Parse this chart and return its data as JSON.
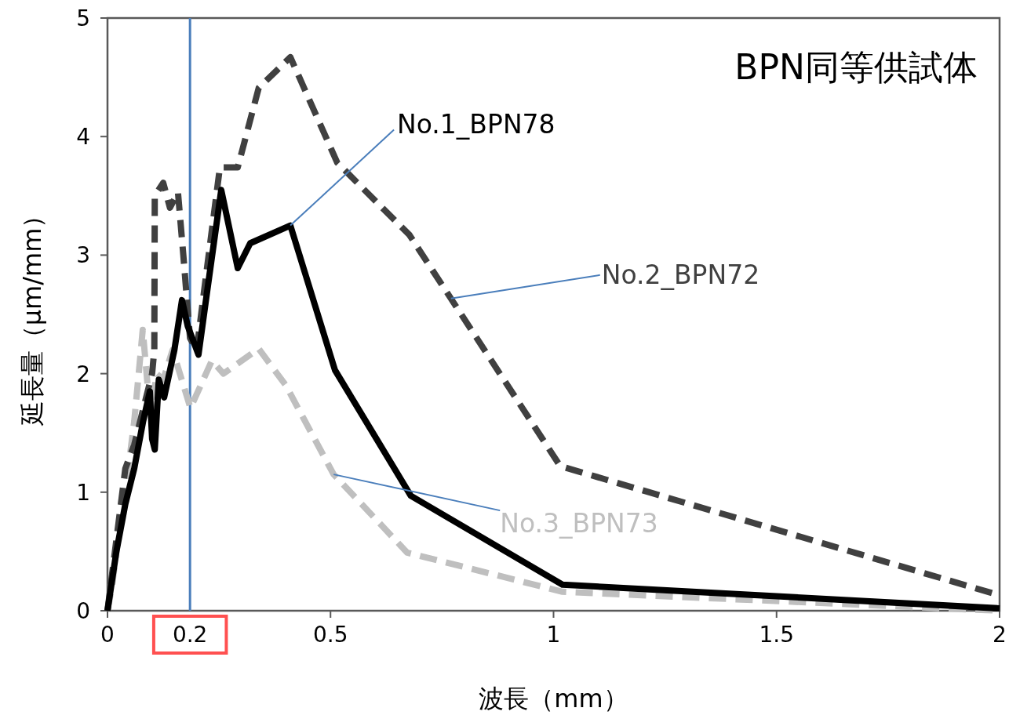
{
  "chart_data": {
    "type": "line",
    "title": "BPN同等供試体",
    "xlabel": "波長（mm）",
    "ylabel": "延長量（μm/mm）",
    "xlim": [
      0,
      2
    ],
    "xticks": [
      0,
      0.5,
      1,
      1.5,
      2
    ],
    "ylim": [
      0,
      5
    ],
    "yticks": [
      0,
      1,
      2,
      3,
      4,
      5
    ],
    "grid": false,
    "legend": false,
    "marker": "none",
    "series": [
      {
        "name": "No.1_BPN78",
        "color": "#000000",
        "line_style": "solid",
        "x": [
          0,
          0.02,
          0.04,
          0.06,
          0.08,
          0.095,
          0.1,
          0.106,
          0.115,
          0.127,
          0.15,
          0.167,
          0.18,
          0.204,
          0.22,
          0.255,
          0.292,
          0.32,
          0.41,
          0.51,
          0.68,
          1.02,
          2
        ],
        "values": [
          0,
          0.5,
          0.9,
          1.2,
          1.6,
          1.85,
          1.45,
          1.36,
          1.95,
          1.8,
          2.2,
          2.62,
          2.4,
          2.16,
          2.6,
          3.55,
          2.89,
          3.1,
          3.25,
          2.03,
          0.97,
          0.22,
          0.02
        ]
      },
      {
        "name": "No.2_BPN72",
        "color": "#404040",
        "line_style": "dashed",
        "x": [
          0,
          0.02,
          0.04,
          0.06,
          0.08,
          0.1,
          0.105,
          0.106,
          0.125,
          0.14,
          0.158,
          0.17,
          0.185,
          0.2,
          0.22,
          0.252,
          0.292,
          0.339,
          0.41,
          0.515,
          0.677,
          1.015,
          2
        ],
        "values": [
          0,
          0.6,
          1.2,
          1.4,
          1.7,
          2.0,
          2.2,
          3.5,
          3.61,
          3.4,
          3.53,
          3.0,
          2.3,
          2.2,
          2.8,
          3.74,
          3.74,
          4.41,
          4.67,
          3.78,
          3.17,
          1.22,
          0.13
        ]
      },
      {
        "name": "No.3_BPN73",
        "color": "#bfbfbf",
        "line_style": "dashed",
        "x": [
          0,
          0.01,
          0.03,
          0.05,
          0.06,
          0.07,
          0.079,
          0.09,
          0.1,
          0.11,
          0.125,
          0.146,
          0.186,
          0.234,
          0.26,
          0.339,
          0.4,
          0.507,
          0.672,
          1.02,
          2
        ],
        "values": [
          0,
          0.2,
          0.8,
          1.3,
          1.6,
          2.0,
          2.37,
          1.9,
          1.7,
          2.0,
          1.95,
          2.2,
          1.71,
          2.11,
          2.0,
          2.21,
          1.9,
          1.15,
          0.49,
          0.16,
          0.0
        ]
      }
    ],
    "ref_lines": [
      {
        "axis": "x",
        "value": 0.185,
        "label": "0.2",
        "color": "#4a7ebb",
        "line_style": "solid"
      }
    ]
  }
}
